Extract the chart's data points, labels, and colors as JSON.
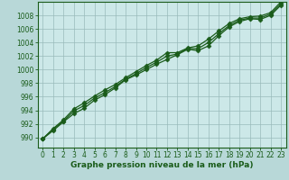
{
  "xlabel": "Graphe pression niveau de la mer (hPa)",
  "xlim": [
    -0.5,
    23.5
  ],
  "ylim": [
    988.5,
    1010.0
  ],
  "yticks": [
    990,
    992,
    994,
    996,
    998,
    1000,
    1002,
    1004,
    1006,
    1008
  ],
  "xticks": [
    0,
    1,
    2,
    3,
    4,
    5,
    6,
    7,
    8,
    9,
    10,
    11,
    12,
    13,
    14,
    15,
    16,
    17,
    18,
    19,
    20,
    21,
    22,
    23
  ],
  "background_color": "#b8d8d8",
  "plot_bg_color": "#cce8e8",
  "grid_color": "#99bbbb",
  "line_color": "#1a5c1a",
  "marker": "D",
  "marker_size": 2.5,
  "linewidth": 0.9,
  "series1": [
    989.8,
    991.0,
    992.3,
    993.5,
    994.3,
    995.5,
    996.3,
    997.3,
    998.5,
    999.2,
    1000.0,
    1000.8,
    1001.5,
    1002.2,
    1003.0,
    1002.8,
    1003.5,
    1005.0,
    1006.3,
    1007.1,
    1007.5,
    1007.4,
    1008.0,
    1009.5
  ],
  "series2": [
    989.8,
    991.3,
    992.6,
    994.2,
    995.1,
    996.1,
    997.0,
    997.8,
    998.8,
    999.7,
    1000.6,
    1001.4,
    1002.5,
    1002.5,
    1003.2,
    1003.5,
    1004.5,
    1005.7,
    1006.8,
    1007.5,
    1007.8,
    1007.9,
    1008.4,
    1010.0
  ],
  "series3": [
    989.8,
    991.2,
    992.4,
    993.9,
    994.7,
    995.8,
    996.6,
    997.5,
    998.6,
    999.4,
    1000.3,
    1001.1,
    1002.0,
    1002.3,
    1003.1,
    1003.1,
    1004.0,
    1005.3,
    1006.5,
    1007.3,
    1007.6,
    1007.6,
    1008.2,
    1009.7
  ]
}
